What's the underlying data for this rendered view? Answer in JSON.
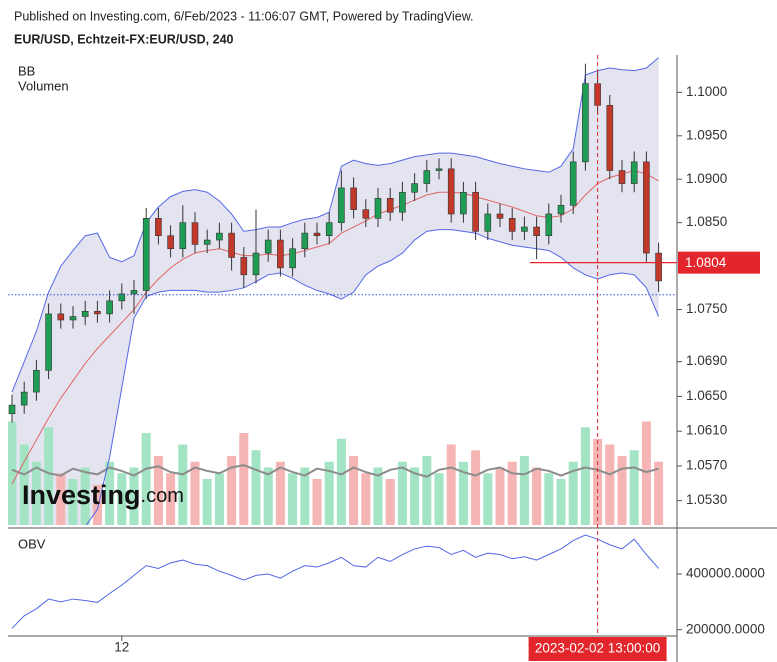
{
  "header": {
    "published": "Published on Investing.com, 6/Feb/2023 - 11:06:07 GMT, Powered by TradingView."
  },
  "watermark": [
    "Investing",
    ".com"
  ],
  "chart_data": [
    {
      "type": "candlestick",
      "title": "EUR/USD, Echtzeit-FX:EUR/USD, 240",
      "categories": [
        null,
        null,
        null,
        null,
        null,
        null,
        null,
        null,
        null,
        "12",
        null,
        null,
        null,
        null,
        null,
        null,
        null,
        null,
        null,
        null,
        null,
        null,
        null,
        null,
        null,
        null,
        null,
        null,
        null,
        null,
        null,
        null,
        null,
        null,
        null,
        null,
        null,
        null,
        null,
        null,
        null,
        null,
        null,
        null,
        null,
        null,
        null,
        null,
        "2023-02-02 13:00:00",
        null,
        null,
        null,
        null,
        null
      ],
      "open": [
        1.063,
        1.064,
        1.0655,
        1.068,
        1.0745,
        1.0738,
        1.0742,
        1.0748,
        1.0745,
        1.076,
        1.0768,
        1.0772,
        1.0855,
        1.0835,
        1.082,
        1.085,
        1.0825,
        1.083,
        1.0838,
        1.081,
        1.079,
        1.0815,
        1.083,
        1.0798,
        1.082,
        1.0838,
        1.0835,
        1.085,
        1.089,
        1.0865,
        1.0855,
        1.0878,
        1.0862,
        1.0885,
        1.0895,
        1.091,
        1.0912,
        1.086,
        1.0885,
        1.084,
        1.086,
        1.0855,
        1.084,
        1.0845,
        1.0835,
        1.086,
        1.087,
        1.092,
        1.101,
        1.0985,
        1.091,
        1.0895,
        1.092,
        1.0815
      ],
      "high": [
        1.0652,
        1.0667,
        1.0692,
        1.0757,
        1.0757,
        1.0754,
        1.076,
        1.076,
        1.0772,
        1.078,
        1.0784,
        1.0867,
        1.0867,
        1.0847,
        1.087,
        1.0862,
        1.0842,
        1.085,
        1.085,
        1.0822,
        1.0865,
        1.0842,
        1.0842,
        1.0832,
        1.085,
        1.085,
        1.0862,
        1.091,
        1.0902,
        1.0877,
        1.089,
        1.089,
        1.0897,
        1.0907,
        1.0922,
        1.0924,
        1.0924,
        1.0897,
        1.0897,
        1.0872,
        1.0872,
        1.0867,
        1.0857,
        1.0857,
        1.0872,
        1.0882,
        1.0932,
        1.1033,
        1.1025,
        1.0997,
        1.0922,
        1.0932,
        1.0932,
        1.0827
      ],
      "low": [
        1.062,
        1.063,
        1.0645,
        1.067,
        1.0728,
        1.0728,
        1.0732,
        1.0735,
        1.0735,
        1.075,
        1.0745,
        1.0762,
        1.0825,
        1.081,
        1.081,
        1.0815,
        1.0815,
        1.082,
        1.0795,
        1.0775,
        1.078,
        1.0805,
        1.0788,
        1.0788,
        1.081,
        1.0825,
        1.0825,
        1.084,
        1.0855,
        1.0845,
        1.0845,
        1.0852,
        1.0852,
        1.0875,
        1.0885,
        1.09,
        1.085,
        1.085,
        1.083,
        1.083,
        1.0845,
        1.083,
        1.083,
        1.0808,
        1.0825,
        1.085,
        1.086,
        1.091,
        1.0975,
        1.09,
        1.0885,
        1.0885,
        1.0805,
        1.077
      ],
      "close": [
        1.064,
        1.0655,
        1.068,
        1.0745,
        1.0738,
        1.0742,
        1.0748,
        1.0745,
        1.076,
        1.0768,
        1.0772,
        1.0855,
        1.0835,
        1.082,
        1.085,
        1.0825,
        1.083,
        1.0838,
        1.081,
        1.079,
        1.0815,
        1.083,
        1.0798,
        1.082,
        1.0838,
        1.0835,
        1.085,
        1.089,
        1.0865,
        1.0855,
        1.0878,
        1.0862,
        1.0885,
        1.0895,
        1.091,
        1.0912,
        1.086,
        1.0885,
        1.084,
        1.086,
        1.0855,
        1.084,
        1.0845,
        1.0835,
        1.086,
        1.087,
        1.092,
        1.101,
        1.0985,
        1.091,
        1.0895,
        1.092,
        1.0815,
        1.0783
      ],
      "up_color": "#1f9d55",
      "down_color": "#c0392b",
      "ylim": [
        1.0502,
        1.1043
      ],
      "yticks": [
        {
          "value": 1.1,
          "label": "1.1000"
        },
        {
          "value": 1.095,
          "label": "1.0950"
        },
        {
          "value": 1.09,
          "label": "1.0900"
        },
        {
          "value": 1.085,
          "label": "1.0850"
        },
        {
          "value": 1.075,
          "label": "1.0750"
        },
        {
          "value": 1.069,
          "label": "1.0690"
        },
        {
          "value": 1.065,
          "label": "1.0650"
        },
        {
          "value": 1.061,
          "label": "1.0610"
        },
        {
          "value": 1.057,
          "label": "1.0570"
        },
        {
          "value": 1.053,
          "label": "1.0530"
        }
      ],
      "price_line": {
        "value": 1.0767,
        "color": "#2f4fd8"
      },
      "crosshair": {
        "value": 1.0804,
        "label": "1.0804",
        "color": "#e3262b"
      },
      "indicators": [
        {
          "name": "BB",
          "color": "#5468e8",
          "middle_color": "#e06666",
          "fill": "#e4e4f1",
          "upper": [
            1.0655,
            1.069,
            1.0725,
            1.077,
            1.08,
            1.0818,
            1.0835,
            1.0838,
            1.081,
            1.0805,
            1.0812,
            1.085,
            1.0868,
            1.088,
            1.0886,
            1.0888,
            1.0885,
            1.0875,
            1.086,
            1.084,
            1.0842,
            1.0845,
            1.0845,
            1.085,
            1.0854,
            1.0856,
            1.0862,
            1.0915,
            1.0922,
            1.0918,
            1.0916,
            1.0918,
            1.0922,
            1.0926,
            1.0928,
            1.093,
            1.093,
            1.0928,
            1.0926,
            1.0922,
            1.0918,
            1.0915,
            1.0912,
            1.091,
            1.0908,
            1.0915,
            1.0935,
            1.102,
            1.1025,
            1.1028,
            1.1026,
            1.1025,
            1.1028,
            1.104
          ],
          "middle": [
            1.0549,
            1.0575,
            1.06,
            1.0625,
            1.0648,
            1.0668,
            1.0688,
            1.0705,
            1.072,
            1.0735,
            1.075,
            1.077,
            1.0785,
            1.0798,
            1.0808,
            1.0815,
            1.0818,
            1.082,
            1.0816,
            1.0812,
            1.0812,
            1.0814,
            1.0812,
            1.0814,
            1.0818,
            1.0822,
            1.0826,
            1.0838,
            1.0845,
            1.0852,
            1.086,
            1.0865,
            1.087,
            1.0876,
            1.0882,
            1.0885,
            1.0885,
            1.0884,
            1.088,
            1.0876,
            1.0872,
            1.0868,
            1.0863,
            1.0858,
            1.0856,
            1.0858,
            1.0866,
            1.0882,
            1.0895,
            1.0902,
            1.0906,
            1.091,
            1.0906,
            1.0898
          ],
          "lower": [
            1.044,
            1.0455,
            1.047,
            1.048,
            1.049,
            1.0495,
            1.05,
            1.052,
            1.058,
            1.066,
            1.074,
            1.0765,
            1.077,
            1.0772,
            1.0772,
            1.0772,
            1.077,
            1.077,
            1.0772,
            1.0775,
            1.0782,
            1.079,
            1.0792,
            1.0786,
            1.0778,
            1.0772,
            1.0768,
            1.0762,
            1.077,
            1.079,
            1.08,
            1.0806,
            1.0815,
            1.083,
            1.084,
            1.0842,
            1.0842,
            1.084,
            1.0838,
            1.0832,
            1.0828,
            1.0824,
            1.0822,
            1.082,
            1.0818,
            1.081,
            1.0798,
            1.079,
            1.0785,
            1.079,
            1.0792,
            1.079,
            1.0775,
            1.0742
          ]
        },
        {
          "name": "Volumen",
          "up_color": "#a3e4c5",
          "down_color": "#f6b5b5",
          "ma_color": "#8c8c8c",
          "ylim": [
            0,
            100
          ],
          "values": [
            90,
            70,
            55,
            85,
            45,
            40,
            50,
            35,
            55,
            45,
            50,
            80,
            60,
            45,
            70,
            55,
            40,
            45,
            60,
            80,
            65,
            50,
            55,
            45,
            50,
            40,
            55,
            75,
            60,
            45,
            50,
            40,
            55,
            50,
            60,
            45,
            70,
            55,
            65,
            45,
            50,
            55,
            60,
            50,
            45,
            40,
            55,
            85,
            75,
            70,
            60,
            65,
            90,
            55
          ],
          "ma": [
            48,
            44,
            50,
            45,
            43,
            49,
            46,
            44,
            50,
            47,
            43,
            49,
            51,
            46,
            44,
            50,
            47,
            45,
            50,
            52,
            48,
            44,
            50,
            46,
            43,
            49,
            47,
            44,
            50,
            46,
            43,
            48,
            50,
            45,
            42,
            48,
            50,
            46,
            43,
            48,
            50,
            45,
            44,
            49,
            47,
            43,
            47,
            50,
            48,
            44,
            49,
            50,
            46,
            49
          ]
        }
      ]
    },
    {
      "type": "line",
      "title": "OBV",
      "color": "#5468e8",
      "values": [
        205000,
        250000,
        275000,
        310000,
        300000,
        310000,
        305000,
        298000,
        330000,
        360000,
        395000,
        430000,
        420000,
        440000,
        450000,
        435000,
        430000,
        410000,
        395000,
        378000,
        395000,
        400000,
        385000,
        410000,
        430000,
        425000,
        440000,
        460000,
        430000,
        425000,
        460000,
        445000,
        470000,
        490000,
        500000,
        495000,
        470000,
        485000,
        460000,
        475000,
        470000,
        455000,
        462000,
        450000,
        470000,
        490000,
        520000,
        540000,
        525000,
        505000,
        490000,
        525000,
        470000,
        420000
      ],
      "ylim": [
        181000,
        558000
      ],
      "yticks": [
        {
          "value": 400000,
          "label": "400000.0000"
        },
        {
          "value": 200000,
          "label": "200000.0000"
        }
      ]
    }
  ]
}
